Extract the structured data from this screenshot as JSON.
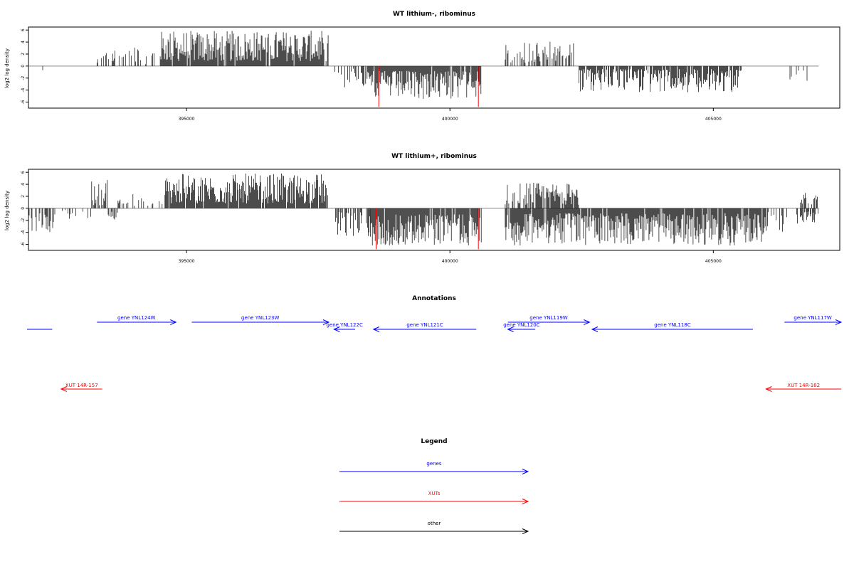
{
  "colors": {
    "genes": "#0000ff",
    "xuts": "#ff0000",
    "other": "#000000",
    "zero_line": "#888888"
  },
  "chart_data": [
    {
      "type": "bar",
      "title": "WT lithium-, ribominus",
      "ylabel": "log2 log density",
      "xlim": [
        392000,
        407400
      ],
      "ylim": [
        -7,
        6.5
      ],
      "x_ticks": [
        "395000",
        "400000",
        "405000"
      ],
      "x_tick_values": [
        395000,
        400000,
        405000
      ],
      "y_ticks": [
        "-6",
        "-4",
        "-2",
        "0",
        "2",
        "4",
        "6"
      ],
      "y_tick_values": [
        -6,
        -4,
        -2,
        0,
        2,
        4,
        6
      ],
      "baseline_span": [
        392000,
        407000
      ],
      "red_bars": [
        {
          "x": 398650,
          "y": -6.8
        },
        {
          "x": 400540,
          "y": -6.8
        }
      ],
      "segments": [
        {
          "start": 392000,
          "end": 392320,
          "sign": -1,
          "min": 0.4,
          "max": 1.2,
          "density": 0.15
        },
        {
          "start": 393220,
          "end": 394400,
          "sign": 1,
          "min": 0.3,
          "max": 3.3,
          "density": 0.35
        },
        {
          "start": 394500,
          "end": 397700,
          "sign": 1,
          "min": 0.8,
          "max": 5.9,
          "density": 0.95
        },
        {
          "start": 397800,
          "end": 398400,
          "sign": -1,
          "min": 0.3,
          "max": 3.6,
          "density": 0.45
        },
        {
          "start": 398400,
          "end": 400600,
          "sign": -1,
          "min": 0.8,
          "max": 5.6,
          "density": 0.95
        },
        {
          "start": 401050,
          "end": 402350,
          "sign": 1,
          "min": 0.5,
          "max": 4.2,
          "density": 0.55
        },
        {
          "start": 402450,
          "end": 405550,
          "sign": -1,
          "min": 0.5,
          "max": 4.4,
          "density": 0.85
        },
        {
          "start": 406400,
          "end": 406900,
          "sign": -1,
          "min": 0.5,
          "max": 3.0,
          "density": 0.12
        }
      ]
    },
    {
      "type": "bar",
      "title": "WT lithium+, ribominus",
      "ylabel": "log2 log density",
      "xlim": [
        392000,
        407400
      ],
      "ylim": [
        -7,
        6.5
      ],
      "x_ticks": [
        "395000",
        "400000",
        "405000"
      ],
      "x_tick_values": [
        395000,
        400000,
        405000
      ],
      "y_ticks": [
        "-6",
        "-4",
        "-2",
        "0",
        "2",
        "4",
        "6"
      ],
      "y_tick_values": [
        -6,
        -4,
        -2,
        0,
        2,
        4,
        6
      ],
      "baseline_span": [
        392000,
        407000
      ],
      "red_bars": [
        {
          "x": 398600,
          "y": -6.8
        },
        {
          "x": 400540,
          "y": -6.8
        }
      ],
      "segments": [
        {
          "start": 392000,
          "end": 392500,
          "sign": -1,
          "min": 0.8,
          "max": 4.6,
          "density": 0.6
        },
        {
          "start": 392600,
          "end": 393200,
          "sign": -1,
          "min": 0.3,
          "max": 2.0,
          "density": 0.2
        },
        {
          "start": 393200,
          "end": 393500,
          "sign": 1,
          "min": 0.5,
          "max": 4.8,
          "density": 0.7
        },
        {
          "start": 393500,
          "end": 393700,
          "sign": -1,
          "min": 0.5,
          "max": 2.6,
          "density": 0.5
        },
        {
          "start": 393700,
          "end": 394600,
          "sign": 1,
          "min": 0.3,
          "max": 2.6,
          "density": 0.3
        },
        {
          "start": 394600,
          "end": 397700,
          "sign": 1,
          "min": 0.8,
          "max": 5.8,
          "density": 0.95
        },
        {
          "start": 397800,
          "end": 398500,
          "sign": -1,
          "min": 0.5,
          "max": 4.8,
          "density": 0.6
        },
        {
          "start": 398500,
          "end": 400600,
          "sign": -1,
          "min": 1.0,
          "max": 6.2,
          "density": 0.95
        },
        {
          "start": 401050,
          "end": 402450,
          "sign": 1,
          "min": 0.6,
          "max": 4.3,
          "density": 0.7
        },
        {
          "start": 401050,
          "end": 406000,
          "sign": -1,
          "min": 0.8,
          "max": 6.2,
          "density": 0.95
        },
        {
          "start": 406000,
          "end": 406600,
          "sign": -1,
          "min": 0.5,
          "max": 4.0,
          "density": 0.3
        },
        {
          "start": 406650,
          "end": 407000,
          "sign": 1,
          "min": 0.5,
          "max": 2.6,
          "density": 0.5
        },
        {
          "start": 406650,
          "end": 407000,
          "sign": -1,
          "min": 0.5,
          "max": 2.4,
          "density": 0.5
        }
      ]
    }
  ],
  "annotations": {
    "title": "Annotations",
    "genes": [
      {
        "label": "",
        "start": 391800,
        "end": 392450,
        "strand": "none",
        "row": 2
      },
      {
        "label": "gene YNL124W",
        "start": 393300,
        "end": 394800,
        "strand": "+",
        "row": 1
      },
      {
        "label": "gene YNL123W",
        "start": 395100,
        "end": 397700,
        "strand": "+",
        "row": 1
      },
      {
        "label": "gene YNL122C",
        "start": 397800,
        "end": 398200,
        "strand": "-",
        "row": 2
      },
      {
        "label": "gene YNL121C",
        "start": 398550,
        "end": 400500,
        "strand": "-",
        "row": 2
      },
      {
        "label": "gene YNL119W",
        "start": 401100,
        "end": 402650,
        "strand": "+",
        "row": 1
      },
      {
        "label": "gene YNL120C",
        "start": 401100,
        "end": 401620,
        "strand": "-",
        "row": 2
      },
      {
        "label": "gene YNL118C",
        "start": 402700,
        "end": 405750,
        "strand": "-",
        "row": 2
      },
      {
        "label": "gene YNL117W",
        "start": 406350,
        "end": 407800,
        "strand": "+",
        "row": 1
      }
    ],
    "xuts": [
      {
        "label": "XUT 14R-157",
        "start": 392620,
        "end": 393400,
        "strand": "-"
      },
      {
        "label": "XUT 14R-162",
        "start": 406000,
        "end": 407800,
        "strand": "-"
      }
    ]
  },
  "legend": {
    "title": "Legend",
    "items": [
      {
        "label": "genes",
        "color": "#0000ff"
      },
      {
        "label": "XUTs",
        "color": "#ff0000"
      },
      {
        "label": "other",
        "color": "#000000"
      }
    ]
  }
}
